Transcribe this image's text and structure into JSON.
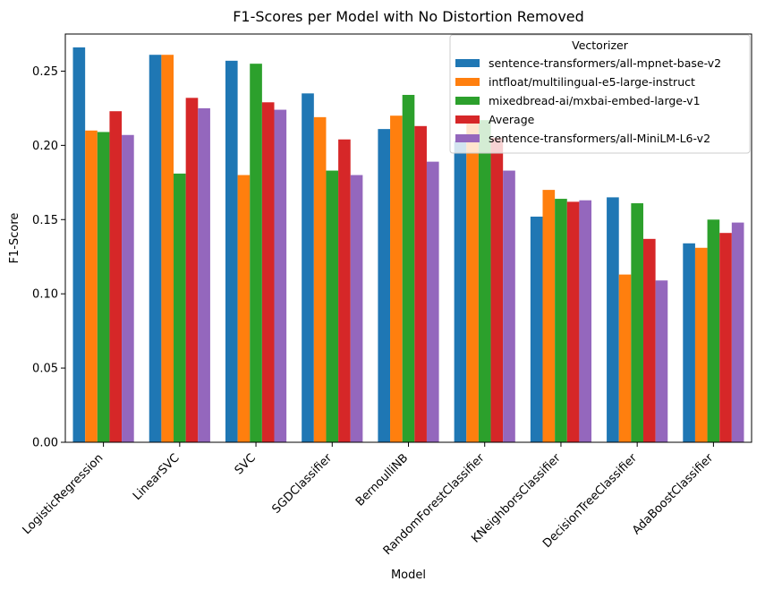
{
  "chart_data": {
    "type": "bar",
    "title": "F1-Scores per Model with No Distortion Removed",
    "xlabel": "Model",
    "ylabel": "F1-Score",
    "ylim": [
      0,
      0.275
    ],
    "yticks": [
      "0.00",
      "0.05",
      "0.10",
      "0.15",
      "0.20",
      "0.25"
    ],
    "grid": false,
    "categories": [
      "LogisticRegression",
      "LinearSVC",
      "SVC",
      "SGDClassifier",
      "BernoulliNB",
      "RandomForestClassifier",
      "KNeighborsClassifier",
      "DecisionTreeClassifier",
      "AdaBoostClassifier"
    ],
    "legend": {
      "title": "Vectorizer",
      "placement": "top-right"
    },
    "series": [
      {
        "name": "sentence-transformers/all-mpnet-base-v2",
        "color": "#1f77b4",
        "values": [
          0.266,
          0.261,
          0.257,
          0.235,
          0.211,
          0.203,
          0.152,
          0.165,
          0.134
        ]
      },
      {
        "name": "intfloat/multilingual-e5-large-instruct",
        "color": "#ff7f0e",
        "values": [
          0.21,
          0.261,
          0.18,
          0.219,
          0.22,
          0.216,
          0.17,
          0.113,
          0.131
        ]
      },
      {
        "name": "mixedbread-ai/mxbai-embed-large-v1",
        "color": "#2ca02c",
        "values": [
          0.209,
          0.181,
          0.255,
          0.183,
          0.234,
          0.217,
          0.164,
          0.161,
          0.15
        ]
      },
      {
        "name": "Average",
        "color": "#d62728",
        "values": [
          0.223,
          0.232,
          0.229,
          0.204,
          0.213,
          0.205,
          0.162,
          0.137,
          0.141
        ]
      },
      {
        "name": "sentence-transformers/all-MiniLM-L6-v2",
        "color": "#9467bd",
        "values": [
          0.207,
          0.225,
          0.224,
          0.18,
          0.189,
          0.183,
          0.163,
          0.109,
          0.148
        ]
      }
    ]
  }
}
